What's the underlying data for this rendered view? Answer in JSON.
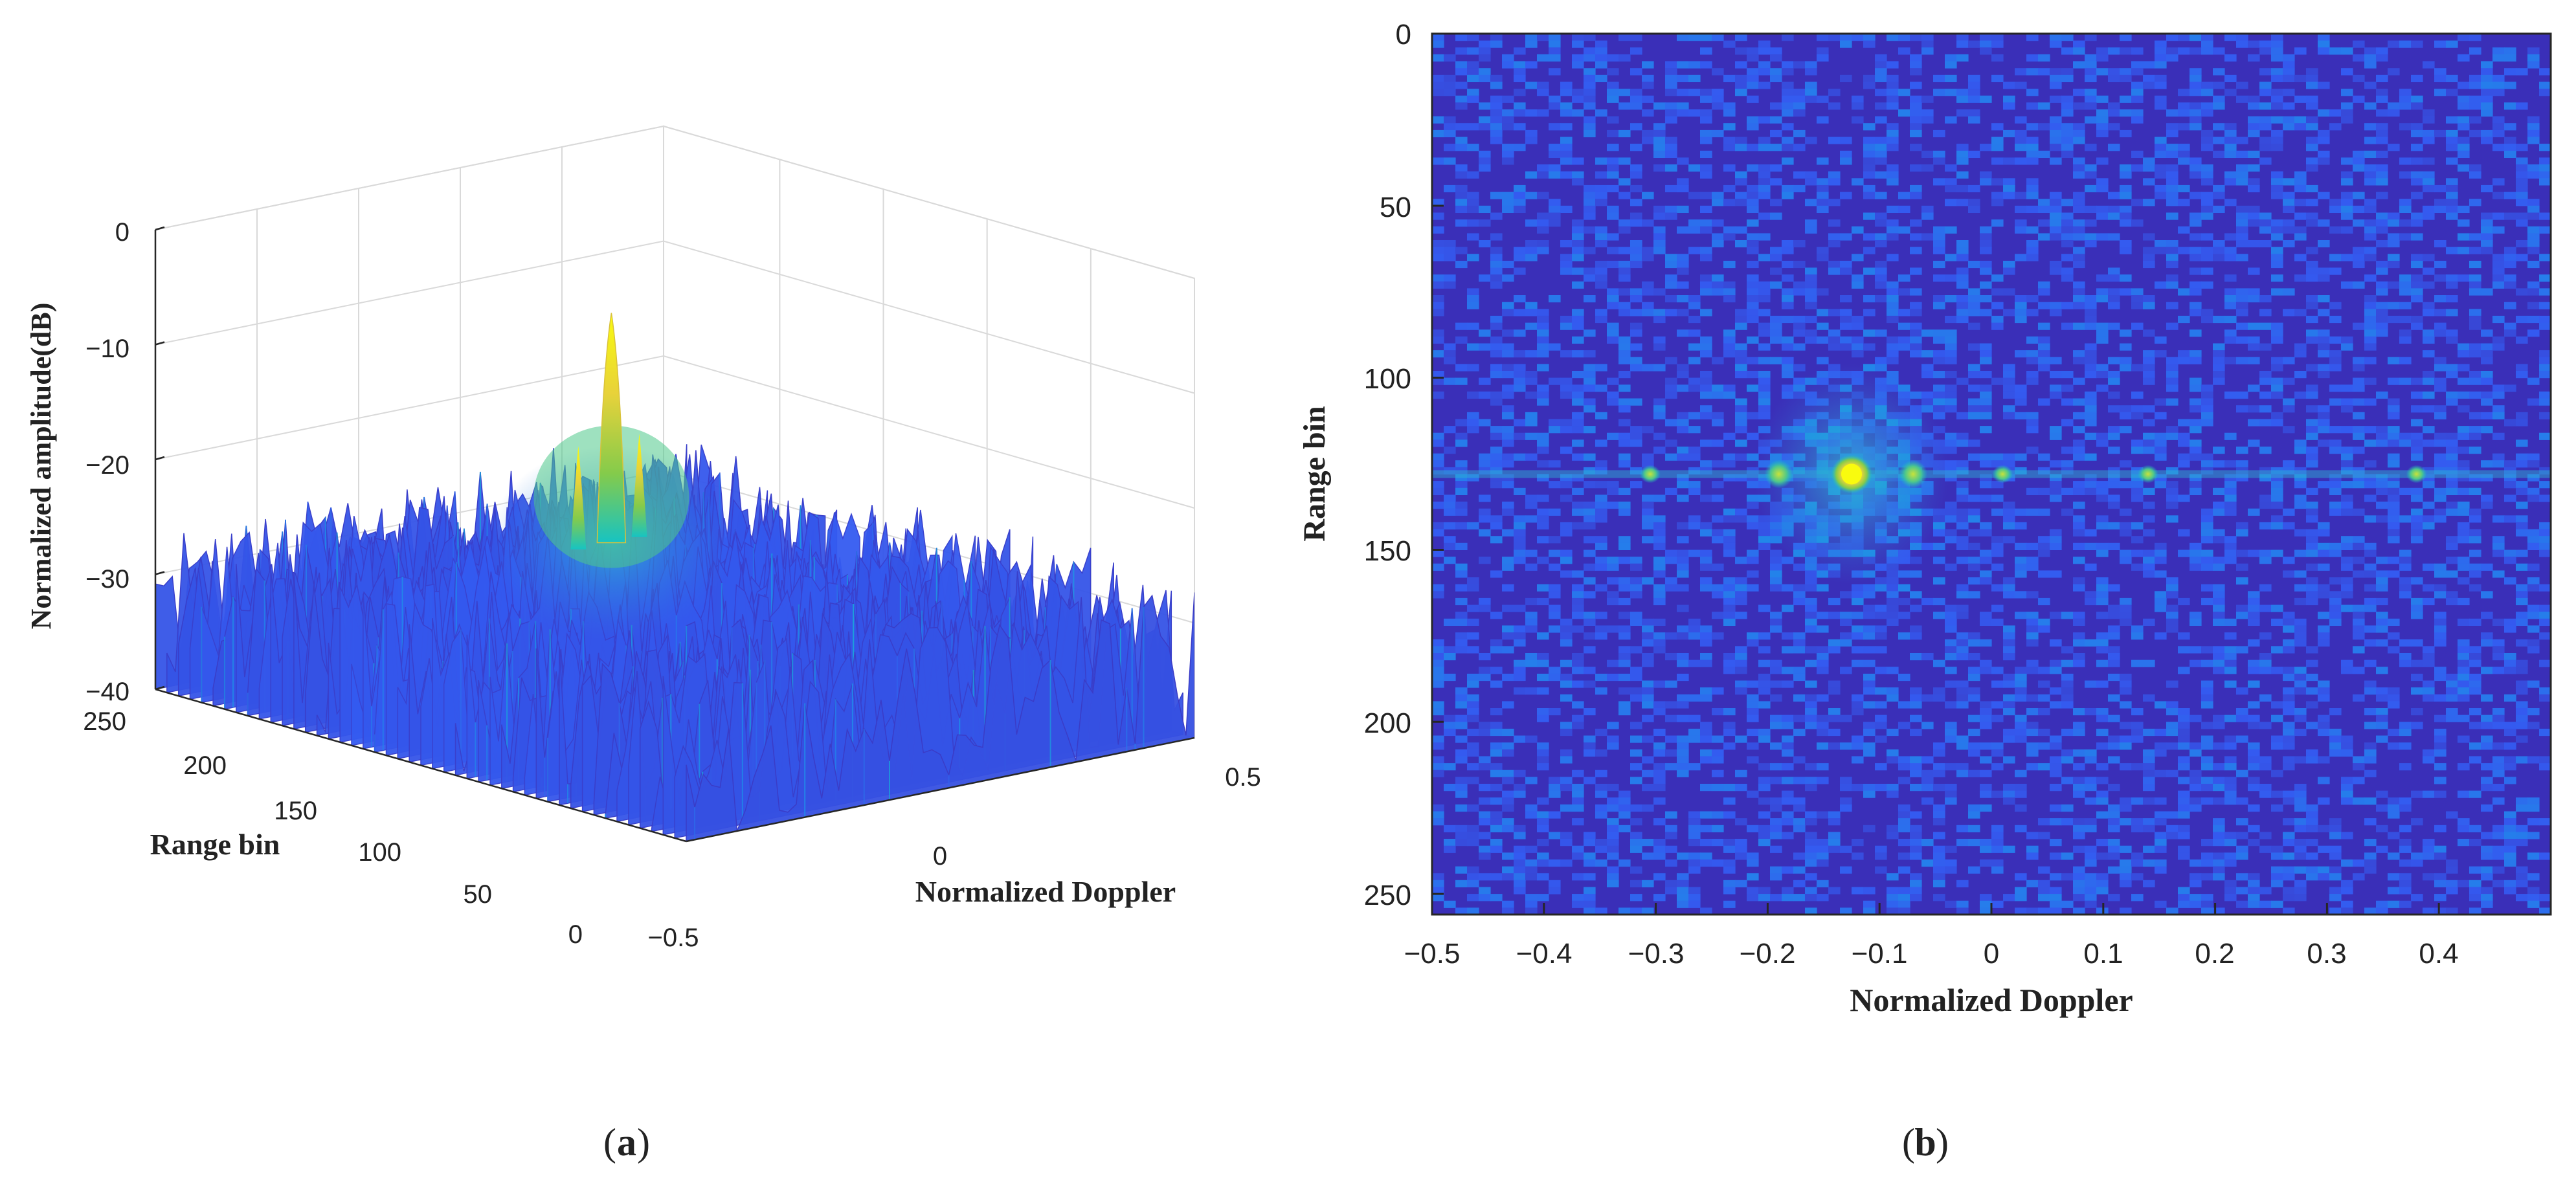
{
  "colors": {
    "colormap_low": "#3e26a8",
    "colormap_mid": "#2f78e0",
    "colormap_cyan": "#17c3c2",
    "colormap_green": "#84cb4b",
    "colormap_high": "#f9fb0e",
    "axis": "#262626",
    "grid": "#d9d9d9"
  },
  "chart_data": [
    {
      "type": "surface3d",
      "panel_label": "(a)",
      "panel_letter": "a",
      "xlabel": "Normalized Doppler",
      "ylabel": "Range bin",
      "zlabel": "Normalized amplitude(dB)",
      "x_ticks": [
        "−0.5",
        "0",
        "0.5"
      ],
      "y_ticks": [
        "0",
        "50",
        "100",
        "150",
        "200",
        "250"
      ],
      "z_ticks": [
        "0",
        "−10",
        "−20",
        "−30",
        "−40"
      ],
      "xlim": [
        -0.5,
        0.5
      ],
      "ylim": [
        0,
        256
      ],
      "zlim": [
        -40,
        0
      ],
      "floor_level_db": -33,
      "target": {
        "doppler": -0.125,
        "range_bin": 128,
        "peak_db": -4
      },
      "sidelobes": [
        {
          "doppler": -0.19,
          "range_bin": 128,
          "peak_db": -15
        },
        {
          "doppler": -0.07,
          "range_bin": 128,
          "peak_db": -15
        }
      ]
    },
    {
      "type": "heatmap",
      "panel_label": "(b)",
      "panel_letter": "b",
      "xlabel": "Normalized Doppler",
      "ylabel": "Range bin",
      "x_ticks": [
        "−0.5",
        "−0.4",
        "−0.3",
        "−0.2",
        "−0.1",
        "0",
        "0.1",
        "0.2",
        "0.3",
        "0.4"
      ],
      "x_tick_values": [
        -0.5,
        -0.4,
        -0.3,
        -0.2,
        -0.1,
        0,
        0.1,
        0.2,
        0.3,
        0.4
      ],
      "y_ticks": [
        "0",
        "50",
        "100",
        "150",
        "200",
        "250"
      ],
      "y_tick_values": [
        0,
        50,
        100,
        150,
        200,
        250
      ],
      "xlim": [
        -0.5,
        0.5
      ],
      "ylim": [
        0,
        256
      ],
      "target": {
        "doppler": -0.125,
        "range_bin": 128,
        "level": "peak"
      },
      "sidelobes": [
        {
          "doppler": -0.19,
          "range_bin": 128
        },
        {
          "doppler": -0.07,
          "range_bin": 128
        },
        {
          "doppler": -0.305,
          "range_bin": 128
        },
        {
          "doppler": 0.01,
          "range_bin": 128
        },
        {
          "doppler": 0.14,
          "range_bin": 128
        },
        {
          "doppler": 0.38,
          "range_bin": 128
        }
      ],
      "ridge_range_bin": 128
    }
  ]
}
